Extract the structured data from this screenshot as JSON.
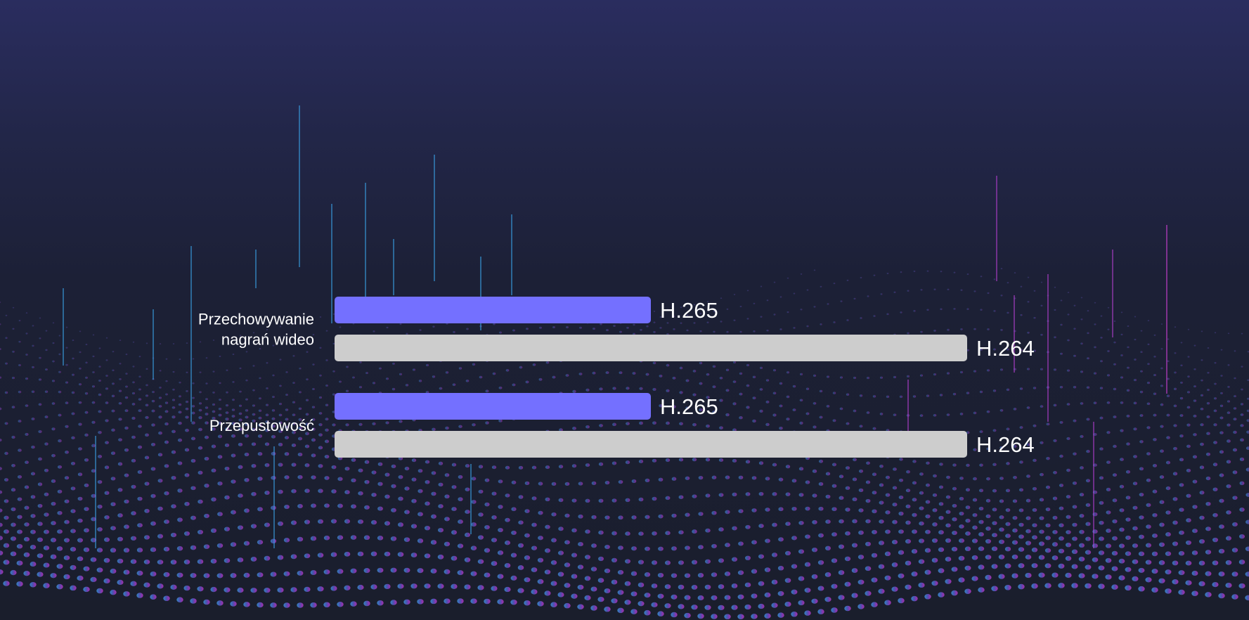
{
  "chart_data": {
    "type": "bar",
    "orientation": "horizontal",
    "categories": [
      [
        "Przechowywanie",
        "nagrań wideo"
      ],
      [
        "Przepustowość"
      ]
    ],
    "series": [
      {
        "name": "H.265",
        "values": [
          50,
          50
        ]
      },
      {
        "name": "H.264",
        "values": [
          100,
          100
        ]
      }
    ],
    "xlim": [
      0,
      100
    ],
    "grid": false,
    "legend": "none",
    "colors": {
      "H.265": "#7470ff",
      "H.264": "#cdcdcd"
    }
  }
}
